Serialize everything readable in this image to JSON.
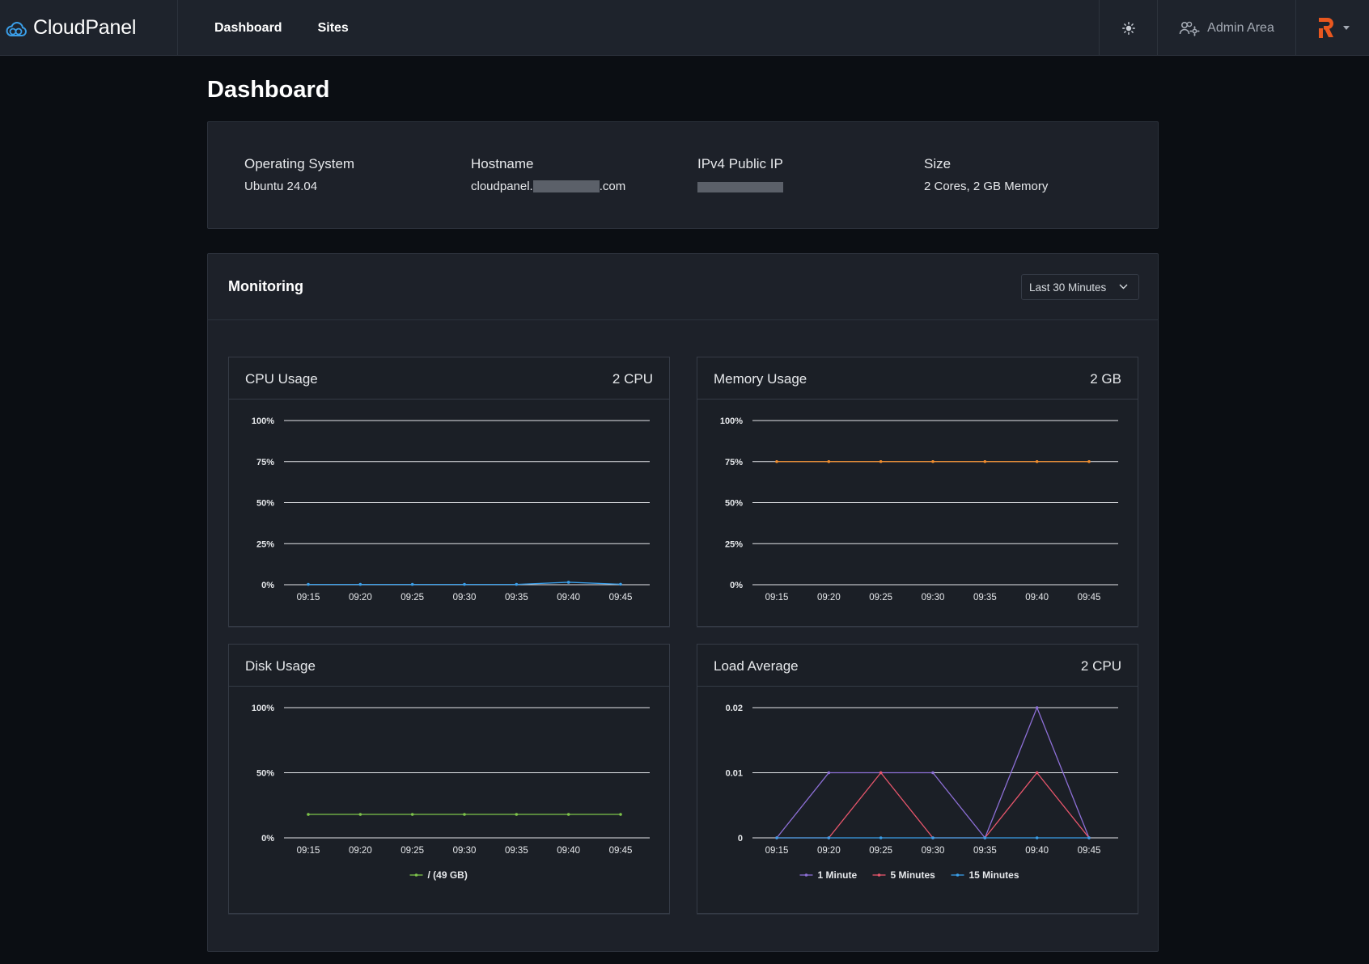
{
  "brand": {
    "name": "CloudPanel"
  },
  "nav": {
    "items": [
      "Dashboard",
      "Sites"
    ]
  },
  "topbar": {
    "admin_label": "Admin Area"
  },
  "page": {
    "title": "Dashboard"
  },
  "system_info": {
    "os_label": "Operating System",
    "os_value": "Ubuntu 24.04",
    "hostname_label": "Hostname",
    "hostname_prefix": "cloudpanel.",
    "hostname_suffix": ".com",
    "ip_label": "IPv4 Public IP",
    "size_label": "Size",
    "size_value": "2 Cores, 2 GB Memory"
  },
  "monitoring": {
    "title": "Monitoring",
    "range_selected": "Last 30 Minutes",
    "charts": [
      {
        "title": "CPU Usage",
        "badge": "2 CPU"
      },
      {
        "title": "Memory Usage",
        "badge": "2 GB"
      },
      {
        "title": "Disk Usage",
        "badge": ""
      },
      {
        "title": "Load Average",
        "badge": "2 CPU"
      }
    ]
  },
  "colors": {
    "cpu": "#3a9ee8",
    "memory": "#f28d2c",
    "disk": "#7dc34a",
    "load_1": "#8d6fd6",
    "load_5": "#e8566c",
    "load_15": "#3a9ee8",
    "accent": "#e8571f"
  },
  "chart_data": [
    {
      "type": "line",
      "x": [
        "09:15",
        "09:20",
        "09:25",
        "09:30",
        "09:35",
        "09:40",
        "09:45"
      ],
      "yticks": [
        "100%",
        "75%",
        "50%",
        "25%",
        "0%"
      ],
      "ylim": [
        0,
        100
      ],
      "series": [
        {
          "values": [
            0.2,
            0.2,
            0.2,
            0.2,
            0.2,
            1.5,
            0.3
          ],
          "color": "#3a9ee8"
        }
      ]
    },
    {
      "type": "line",
      "x": [
        "09:15",
        "09:20",
        "09:25",
        "09:30",
        "09:35",
        "09:40",
        "09:45"
      ],
      "yticks": [
        "100%",
        "75%",
        "50%",
        "25%",
        "0%"
      ],
      "ylim": [
        0,
        100
      ],
      "series": [
        {
          "values": [
            75,
            75,
            75,
            75,
            75,
            75,
            75
          ],
          "color": "#f28d2c"
        }
      ]
    },
    {
      "type": "line",
      "x": [
        "09:15",
        "09:20",
        "09:25",
        "09:30",
        "09:35",
        "09:40",
        "09:45"
      ],
      "yticks": [
        "100%",
        "50%",
        "0%"
      ],
      "ylim": [
        0,
        100
      ],
      "legend": "bottom",
      "series": [
        {
          "name": "/ (49 GB)",
          "values": [
            18,
            18,
            18,
            18,
            18,
            18,
            18
          ],
          "color": "#7dc34a"
        }
      ]
    },
    {
      "type": "line",
      "x": [
        "09:15",
        "09:20",
        "09:25",
        "09:30",
        "09:35",
        "09:40",
        "09:45"
      ],
      "yticks": [
        "0.02",
        "0.01",
        "0"
      ],
      "ylim": [
        0,
        0.02
      ],
      "legend": "bottom",
      "series": [
        {
          "name": "1 Minute",
          "values": [
            0,
            0.01,
            0.01,
            0.01,
            0,
            0.02,
            0
          ],
          "color": "#8d6fd6"
        },
        {
          "name": "5 Minutes",
          "values": [
            0,
            0,
            0.01,
            0,
            0,
            0.01,
            0
          ],
          "color": "#e8566c"
        },
        {
          "name": "15 Minutes",
          "values": [
            0,
            0,
            0,
            0,
            0,
            0,
            0
          ],
          "color": "#3a9ee8"
        }
      ]
    }
  ]
}
